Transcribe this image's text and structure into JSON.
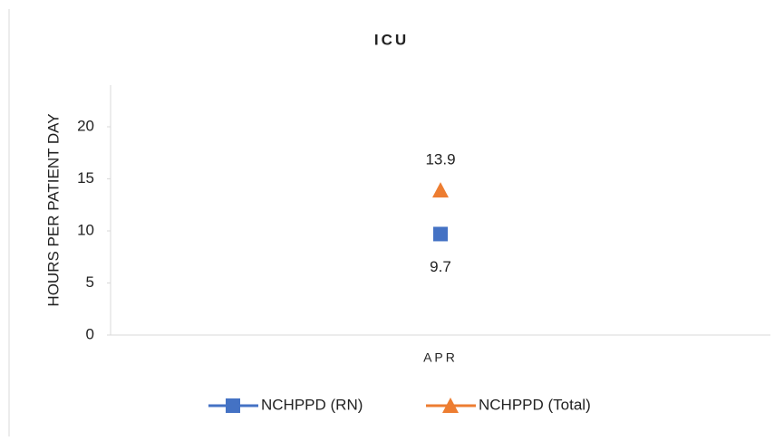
{
  "chart_data": {
    "type": "line",
    "title": "ICU",
    "y_label": "HOURS PER PATIENT DAY",
    "categories": [
      "APR"
    ],
    "series": [
      {
        "name": "NCHPPD (RN)",
        "color": "#4472c4",
        "marker": "square",
        "values": [
          9.7
        ]
      },
      {
        "name": "NCHPPD (Total)",
        "color": "#ed7d31",
        "marker": "triangle",
        "values": [
          13.9
        ]
      }
    ],
    "ylim": [
      0,
      24
    ],
    "yticks": [
      0,
      5,
      10,
      15,
      20
    ],
    "legend": "bottom"
  }
}
